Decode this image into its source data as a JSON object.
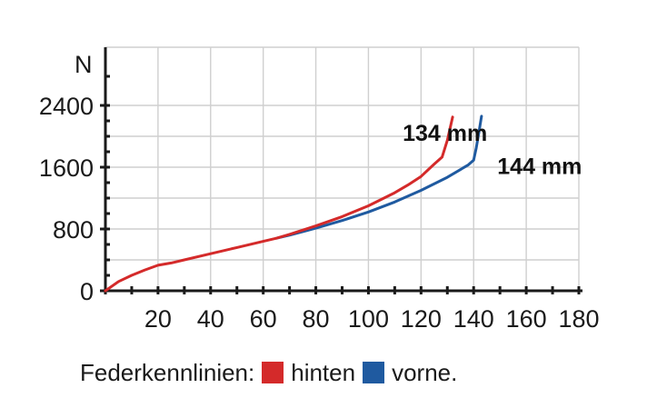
{
  "chart_data": {
    "type": "line",
    "xlabel": "",
    "ylabel": "N",
    "xlim": [
      0,
      180
    ],
    "ylim": [
      0,
      2400
    ],
    "x_ticks": [
      20,
      40,
      60,
      80,
      100,
      120,
      140,
      160,
      180
    ],
    "x_tick_labels": [
      "20",
      "40",
      "60",
      "80",
      "100",
      "120",
      "140",
      "160",
      "180"
    ],
    "y_ticks": [
      0,
      800,
      1600,
      2400
    ],
    "y_tick_labels": [
      "0",
      "800",
      "1600",
      "2400"
    ],
    "grid": true,
    "series": [
      {
        "name": "hinten",
        "color": "#d42a2a",
        "x": [
          0,
          5,
          10,
          15,
          20,
          25,
          30,
          40,
          50,
          60,
          65,
          70,
          80,
          90,
          100,
          110,
          115,
          120,
          125,
          128,
          130,
          132
        ],
        "y": [
          0,
          120,
          200,
          270,
          330,
          360,
          400,
          480,
          560,
          640,
          680,
          730,
          840,
          960,
          1100,
          1270,
          1370,
          1480,
          1640,
          1730,
          1950,
          2250
        ]
      },
      {
        "name": "vorne",
        "color": "#1f5aa0",
        "x": [
          65,
          70,
          80,
          90,
          100,
          110,
          120,
          130,
          138,
          140,
          141,
          142,
          143
        ],
        "y": [
          680,
          720,
          810,
          910,
          1020,
          1150,
          1300,
          1470,
          1630,
          1690,
          1850,
          2050,
          2260
        ]
      }
    ],
    "annotations": [
      {
        "text": "134 mm",
        "x": 113,
        "y": 2050
      },
      {
        "text": "144 mm",
        "x": 149,
        "y": 1620
      }
    ]
  },
  "legend": {
    "title": "Federkennlinien:",
    "items": [
      {
        "label": "hinten",
        "color": "#d42a2a"
      },
      {
        "label": "vorne.",
        "color": "#1f5aa0"
      }
    ]
  },
  "colors": {
    "grid": "#cfcfcf",
    "axis": "#1a1a1a"
  }
}
